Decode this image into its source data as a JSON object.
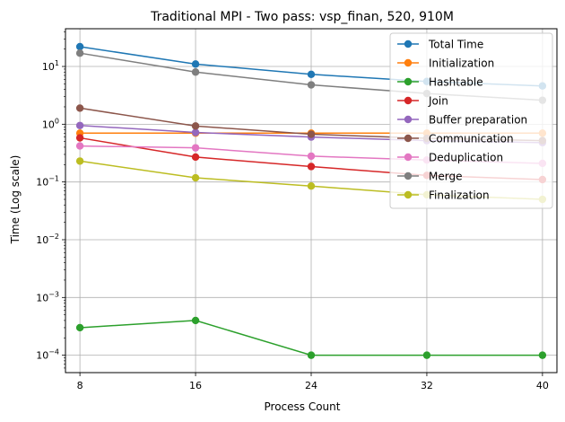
{
  "chart_data": {
    "type": "line",
    "title": "Traditional MPI - Two pass: vsp_finan, 520, 910M",
    "xlabel": "Process Count",
    "ylabel": "Time (Log scale)",
    "y_scale": "log",
    "ylim": [
      5e-05,
      45
    ],
    "xlim": [
      7,
      41
    ],
    "x": [
      8,
      16,
      24,
      32,
      40
    ],
    "x_tick_labels": [
      "8",
      "16",
      "24",
      "32",
      "40"
    ],
    "y_ticks": [
      {
        "value": 0.0001,
        "base": "10",
        "exp": "−4"
      },
      {
        "value": 0.001,
        "base": "10",
        "exp": "−3"
      },
      {
        "value": 0.01,
        "base": "10",
        "exp": "−2"
      },
      {
        "value": 0.1,
        "base": "10",
        "exp": "−1"
      },
      {
        "value": 1,
        "base": "10",
        "exp": "0"
      },
      {
        "value": 10,
        "base": "10",
        "exp": "1"
      }
    ],
    "grid": true,
    "legend_position": "upper-right",
    "series": [
      {
        "name": "Total Time",
        "color": "#1f77b4",
        "values": [
          22,
          11,
          7.3,
          5.5,
          4.6
        ]
      },
      {
        "name": "Initialization",
        "color": "#ff7f0e",
        "values": [
          0.7,
          0.7,
          0.7,
          0.7,
          0.7
        ]
      },
      {
        "name": "Hashtable",
        "color": "#2ca02c",
        "values": [
          0.0003,
          0.0004,
          0.0001,
          0.0001,
          0.0001
        ]
      },
      {
        "name": "Join",
        "color": "#d62728",
        "values": [
          0.58,
          0.27,
          0.185,
          0.13,
          0.11
        ]
      },
      {
        "name": "Buffer preparation",
        "color": "#9467bd",
        "values": [
          0.95,
          0.72,
          0.6,
          0.52,
          0.48
        ]
      },
      {
        "name": "Communication",
        "color": "#8c564b",
        "values": [
          1.9,
          0.93,
          0.67,
          0.57,
          0.52
        ]
      },
      {
        "name": "Deduplication",
        "color": "#e377c2",
        "values": [
          0.42,
          0.39,
          0.28,
          0.24,
          0.21
        ]
      },
      {
        "name": "Merge",
        "color": "#7f7f7f",
        "values": [
          17,
          8,
          4.8,
          3.4,
          2.6
        ]
      },
      {
        "name": "Finalization",
        "color": "#bcbd22",
        "values": [
          0.23,
          0.118,
          0.085,
          0.06,
          0.05
        ]
      }
    ]
  }
}
